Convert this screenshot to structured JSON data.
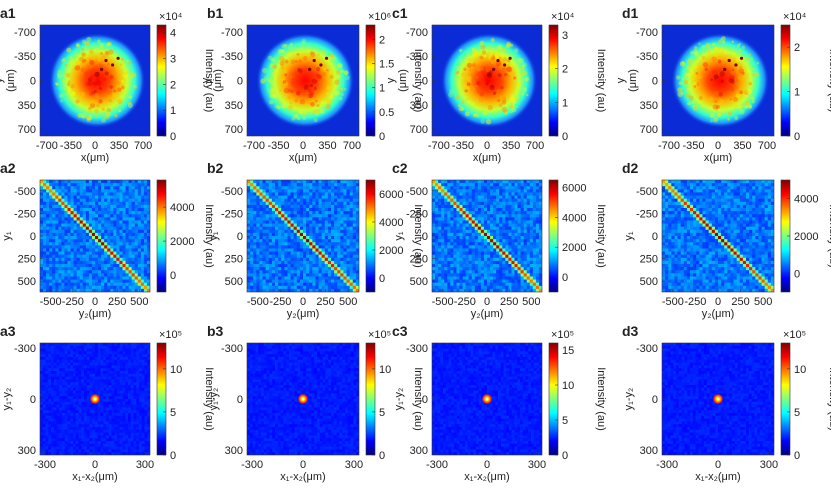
{
  "figure": {
    "colors": {
      "colormap": [
        "#00007f",
        "#0000ff",
        "#007fff",
        "#00ffff",
        "#7fff7f",
        "#ffff00",
        "#ff7f00",
        "#ff0000",
        "#7f0000"
      ],
      "background": "#0a2bd6"
    },
    "rows": [
      {
        "kind": "beam",
        "xlabel": "x(μm)",
        "ylabel_line1": "y",
        "ylabel_line2": "(μm)",
        "yticks": [
          "-700",
          "-350",
          "0",
          "350",
          "700"
        ],
        "xticks": [
          "-700",
          "-350",
          "0",
          "350",
          "700"
        ],
        "colorbar_title": "Intensity (au)",
        "panels": [
          {
            "label": "a1",
            "exponent": "×10⁴",
            "cb_ticks": [
              "0",
              "1",
              "2",
              "3",
              "4"
            ],
            "cb_max": 4.3
          },
          {
            "label": "b1",
            "exponent": "×10⁶",
            "cb_ticks": [
              "0",
              "0.5",
              "1",
              "1.5",
              "2"
            ],
            "cb_max": 2.3
          },
          {
            "label": "c1",
            "exponent": "×10⁴",
            "cb_ticks": [
              "0",
              "1",
              "2",
              "3"
            ],
            "cb_max": 3.3
          },
          {
            "label": "d1",
            "exponent": "×10⁴",
            "cb_ticks": [
              "0",
              "1",
              "2"
            ],
            "cb_max": 2.5
          }
        ]
      },
      {
        "kind": "diagonal",
        "xlabel": "y₂(μm)",
        "ylabel": "y₁",
        "yticks": [
          "-500",
          "-250",
          "0",
          "250",
          "500"
        ],
        "xticks": [
          "-500",
          "-250",
          "0",
          "250",
          "500"
        ],
        "colorbar_title": "Intensity (au)",
        "panels": [
          {
            "label": "a2",
            "cb_ticks": [
              "0",
              "2000",
              "4000"
            ],
            "cb_max": 5600,
            "cb_min": -1000,
            "direction": "down"
          },
          {
            "label": "b2",
            "cb_ticks": [
              "0",
              "2000",
              "4000",
              "6000"
            ],
            "cb_max": 7000,
            "cb_min": -1000,
            "direction": "down"
          },
          {
            "label": "c2",
            "cb_ticks": [
              "0",
              "2000",
              "4000",
              "6000"
            ],
            "cb_max": 6500,
            "cb_min": -1000,
            "direction": "down"
          },
          {
            "label": "d2",
            "cb_ticks": [
              "0",
              "2000",
              "4000"
            ],
            "cb_max": 5000,
            "cb_min": -1000,
            "direction": "down"
          }
        ]
      },
      {
        "kind": "spot",
        "xlabel": "x₁-x₂(μm)",
        "yticks": [
          "-300",
          "0",
          "300"
        ],
        "xticks": [
          "-300",
          "0",
          "300"
        ],
        "colorbar_title": "Intensity (au)",
        "panels": [
          {
            "label": "a3",
            "ylabel": "y₁-y₂",
            "exponent": "×10⁵",
            "cb_ticks": [
              "0",
              "5",
              "10"
            ],
            "cb_max": 13
          },
          {
            "label": "b3",
            "ylabel": "y₁-y₂",
            "exponent": "×10⁵",
            "cb_ticks": [
              "0",
              "5",
              "10"
            ],
            "cb_max": 13
          },
          {
            "label": "c3",
            "ylabel": "y₁-y₂",
            "exponent": "×10⁵",
            "cb_ticks": [
              "0",
              "5",
              "10",
              "15"
            ],
            "cb_max": 16
          },
          {
            "label": "d3",
            "ylabel": "y₁-y₂",
            "exponent": "×10⁵",
            "cb_ticks": [
              "0",
              "5",
              "10"
            ],
            "cb_max": 13
          }
        ]
      }
    ]
  }
}
